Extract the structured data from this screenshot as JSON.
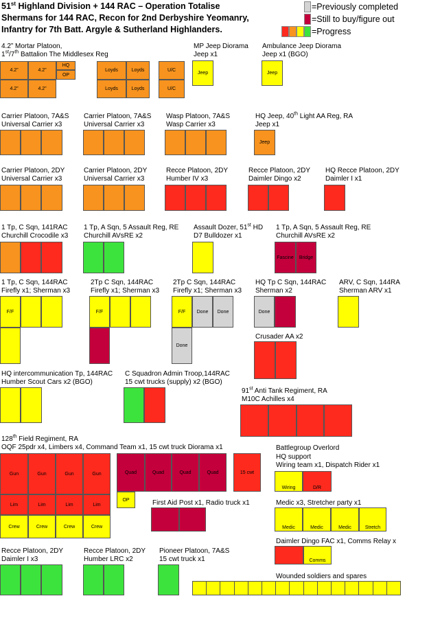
{
  "colors": {
    "orange": "#f7931e",
    "yellow": "#ffff00",
    "red": "#ff2a1e",
    "green": "#3de33d",
    "grey": "#d4d4d4",
    "maroon": "#c4003c"
  },
  "title": {
    "line1_a": "51",
    "line1_sup": "st",
    "line1_b": " Highland Division + 144 RAC – Operation Totalise",
    "line2": "Shermans for 144 RAC, Recon for 2nd Derbyshire Yeomanry,",
    "line3": "Infantry for 7th Batt. Argyle & Sutherland Highlanders."
  },
  "legend": {
    "previously_completed": "=Previously completed",
    "still_to_buy": "=Still to buy/figure out",
    "progress": "=Progress"
  },
  "labels": {
    "mortar_1": "4.2” Mortar Platoon,",
    "mortar_2a": "1",
    "mortar_2_sup1": "st",
    "mortar_2b": "/7",
    "mortar_2_sup2": "th",
    "mortar_2c": " Battalion The Middlesex Reg",
    "mp_jeep_1": "MP Jeep Diorama",
    "mp_jeep_2": "Jeep x1",
    "amb_jeep_1": "Ambulance Jeep Diorama",
    "amb_jeep_2": "Jeep x1 (BGO)",
    "carrier_7as_a_1": "Carrier Platoon, 7A&S",
    "carrier_7as_a_2": "Universal Carrier x3",
    "carrier_7as_b_1": "Carrier Platoon, 7A&S",
    "carrier_7as_b_2": "Universal Carrier x3",
    "wasp_1": "Wasp Platoon, 7A&S",
    "wasp_2": "Wasp Carrier x3",
    "hq_jeep_1a": "HQ Jeep, 40",
    "hq_jeep_1_sup": "th",
    "hq_jeep_1b": " Light AA Reg, RA",
    "hq_jeep_2": "Jeep x1",
    "carrier_2dy_a_1": "Carrier Platoon, 2DY",
    "carrier_2dy_a_2": "Universal Carrier x3",
    "carrier_2dy_b_1": "Carrier Platoon, 2DY",
    "carrier_2dy_b_2": "Universal Carrier x3",
    "recce_humber_1": "Recce Platoon, 2DY",
    "recce_humber_2": "Humber IV x3",
    "recce_dingo_1": "Recce Platoon, 2DY",
    "recce_dingo_2": "Daimler Dingo x2",
    "hq_recce_1": "HQ Recce Platoon, 2DY",
    "hq_recce_2": "Daimler I x1",
    "croc_1": "1 Tp, C Sqn, 141RAC",
    "croc_2": "Churchill Crocodile x3",
    "avre_a_1": "1 Tp, A Sqn, 5 Assault Reg, RE",
    "avre_a_2": "Churchill AVsRE x2",
    "dozer_1a": "Assault Dozer, 51",
    "dozer_1_sup": "st",
    "dozer_1b": " HD",
    "dozer_2": "D7 Bulldozer x1",
    "avre_b_1": "1 Tp, A Sqn, 5 Assault Reg, RE",
    "avre_b_2": "Churchill AVsRE x2",
    "tp1_1": "1 Tp, C Sqn, 144RAC",
    "tp1_2": "Firefly x1; Sherman x3",
    "tp2a_1": "2Tp C Sqn, 144RAC",
    "tp2a_2": "Firefly x1; Sherman x3",
    "tp2b_1": "2Tp C Sqn, 144RAC",
    "tp2b_2": "Firefly x1; Sherman x3",
    "hqtp_1": "HQ Tp C Sqn, 144RAC",
    "hqtp_2": "Sherman x2",
    "arv_1": "ARV, C Sqn, 144RA",
    "arv_2": "Sherman ARV x1",
    "crusader": "Crusader AA x2",
    "hq_int_1": "HQ intercommunication Tp, 144RAC",
    "hq_int_2": "Humber Scout Cars x2 (BGO)",
    "admin_1": "C Squadron Admin Troop,144RAC",
    "admin_2": "15 cwt trucks (supply) x2 (BGO)",
    "at_1a": "91",
    "at_1_sup": "st",
    "at_1b": " Anti Tank Regiment, RA",
    "at_2": "M10C Achilles x4",
    "field_1a": "128",
    "field_1_sup": "th",
    "field_1b": " Field Regiment, RA",
    "field_2": "OQF 25pdr x4, Limbers x4, Command Team x1, 15 cwt truck Diorama x1",
    "bgo_1": "Battlegroup Overlord",
    "bgo_2": "HQ support",
    "bgo_3": "Wiring team x1, Dispatch Rider x1",
    "first_aid": "First Aid Post x1, Radio truck x1",
    "medic": "Medic x3, Stretcher party x1",
    "dingo_fac": "Daimler Dingo FAC x1, Comms Relay x",
    "recce_daimler_1": "Recce Platoon, 2DY",
    "recce_daimler_2": "Daimler I  x3",
    "recce_lrc_1": "Recce Platoon, 2DY",
    "recce_lrc_2": "Humber LRC  x2",
    "pioneer_1": "Pioneer Platoon, 7A&S",
    "pioneer_2": "15 cwt truck x1",
    "wounded": "Wounded soldiers and spares"
  },
  "blocks": {
    "m42": "4.2”",
    "hq": "HQ",
    "op": "OP",
    "loyds": "Loyds",
    "uc": "U/C",
    "jeep": "Jeep",
    "fascine": "Fascine",
    "bridge": "Bridge",
    "ff": "F/F",
    "done": "Done",
    "gun": "Gun",
    "lim": "Lim",
    "crew": "Crew",
    "quad": "Quad",
    "cwt15": "15 cwt",
    "wiring": "Wiring",
    "dr": "D/R",
    "medic": "Medic",
    "stretch": "Stretch",
    "comms": "Comms"
  }
}
